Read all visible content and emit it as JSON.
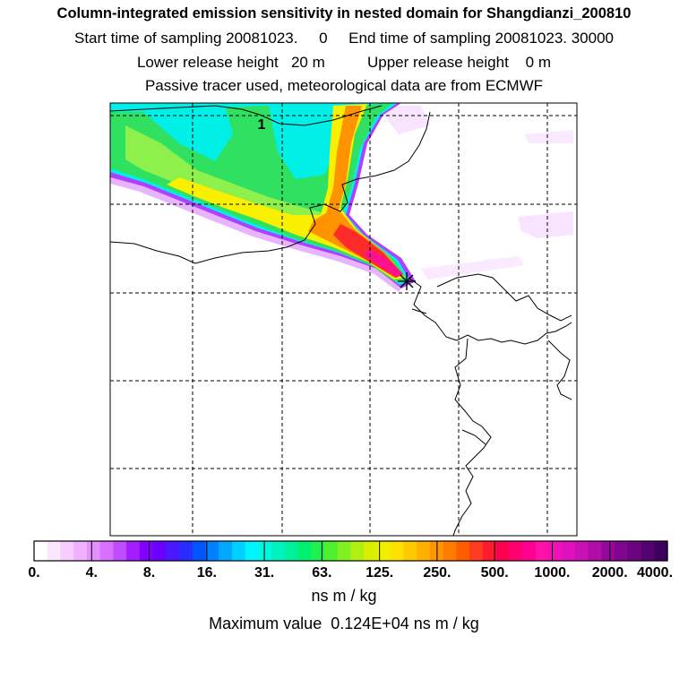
{
  "header": {
    "title": "Column-integrated emission sensitivity in nested domain for Shangdianzi_200810",
    "line2": "Start time of sampling 20081023.     0     End time of sampling 20081023. 30000",
    "line3": "Lower release height   20 m          Upper release height    0 m",
    "line4": "Passive tracer used, meteorological data are from ECMWF"
  },
  "map": {
    "contour_label": "1",
    "source_marker": "release-star",
    "plume_colors": {
      "cyan": "#00f0e8",
      "green": "#30e060",
      "yellow": "#f8f000",
      "orange": "#ff8800",
      "red": "#ff2020",
      "magenta": "#ff1090",
      "purple": "#8a00ff",
      "violet": "#e060ff"
    }
  },
  "chart_data": {
    "type": "heatmap",
    "title": "Column-integrated emission sensitivity in nested domain for Shangdianzi_200810",
    "colorbar": {
      "tick_labels": [
        "0.",
        "4.",
        "8.",
        "16.",
        "31.",
        "63.",
        "125.",
        "250.",
        "500.",
        "1000.",
        "2000.",
        "4000."
      ],
      "tick_values": [
        0,
        4,
        8,
        16,
        31,
        63,
        125,
        250,
        500,
        1000,
        2000,
        4000
      ],
      "colors": [
        "#ffffff",
        "#fbe6ff",
        "#f6ccff",
        "#f0b0ff",
        "#e590ff",
        "#d870ff",
        "#c14cff",
        "#a41cff",
        "#8200ff",
        "#6a00ff",
        "#4a18ff",
        "#2a2cff",
        "#0055ff",
        "#0080ff",
        "#00a8ff",
        "#00d0ff",
        "#00f4ff",
        "#00f8e0",
        "#00f2c0",
        "#00f09c",
        "#00f070",
        "#20f050",
        "#50f030",
        "#80f020",
        "#b0f010",
        "#d8f000",
        "#f0f000",
        "#ffe000",
        "#ffc800",
        "#ffb000",
        "#ff9600",
        "#ff7c00",
        "#ff5c00",
        "#ff3c20",
        "#ff1c30",
        "#ff0050",
        "#ff0070",
        "#ff0090",
        "#ff10a8",
        "#f010b8",
        "#e010c0",
        "#c810b4",
        "#b00ca8",
        "#96089c",
        "#800690",
        "#6a0480",
        "#540270",
        "#3e0060"
      ]
    },
    "units": "ns m / kg",
    "maximum_value_text": "Maximum value  0.124E+04 ns m / kg",
    "maximum_value": 1240,
    "release_site": "Shangdianzi",
    "release_date": "20081023",
    "grid": true
  }
}
